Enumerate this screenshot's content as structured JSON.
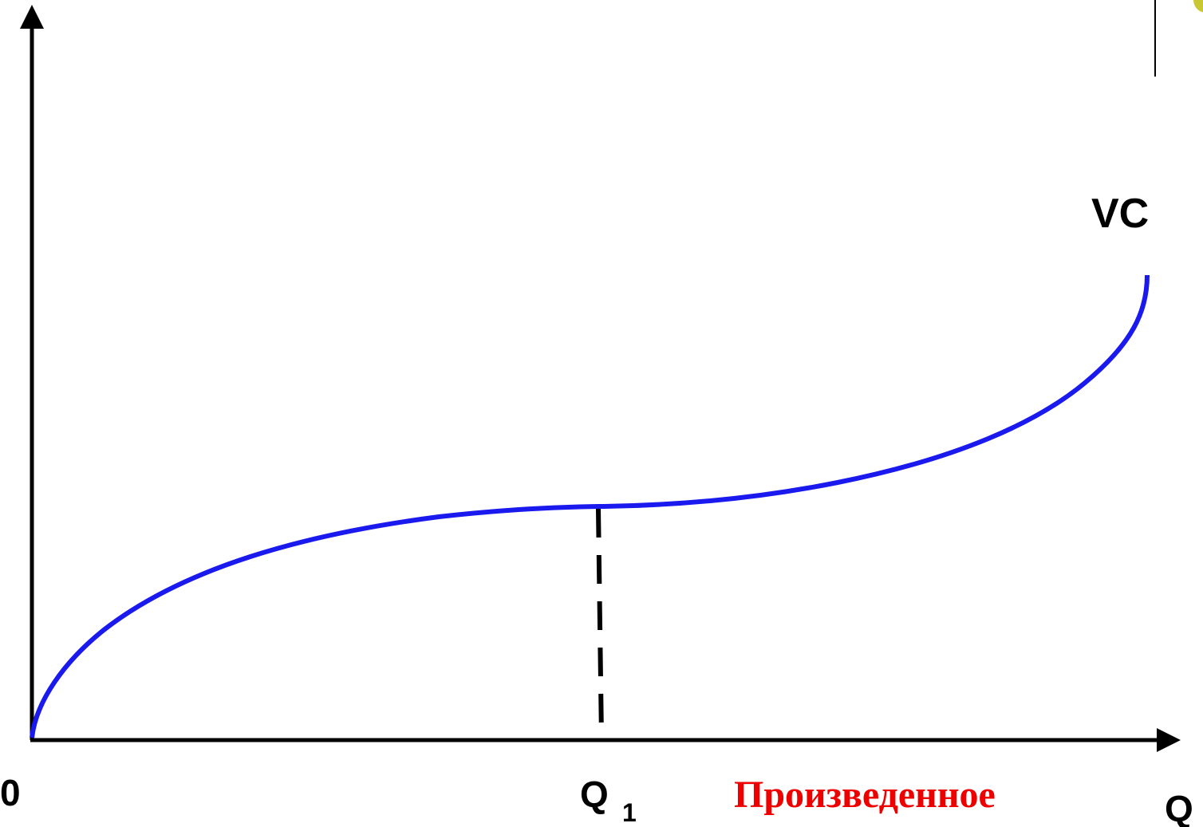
{
  "labels": {
    "vc": "VC",
    "origin": "0",
    "q1": "Q",
    "q1_sub": "1",
    "produced": "Произведенное",
    "q_axis": "Q"
  }
}
